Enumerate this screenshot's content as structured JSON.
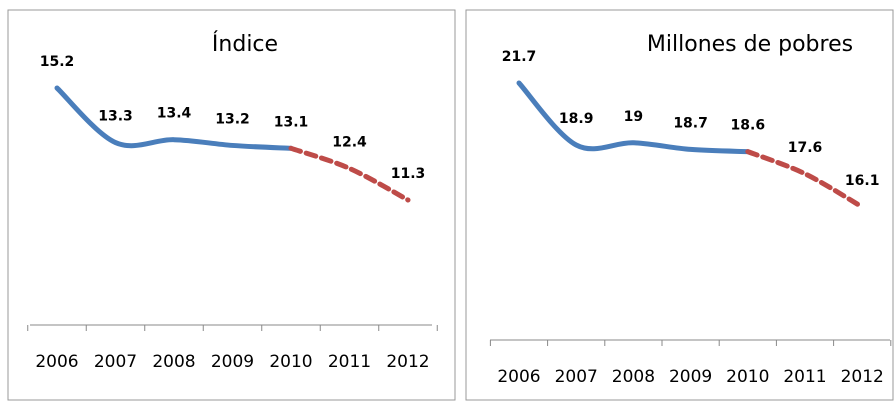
{
  "chart_data": [
    {
      "type": "line",
      "title": "Índice",
      "categories": [
        "2006",
        "2007",
        "2008",
        "2009",
        "2010",
        "2011",
        "2012"
      ],
      "series": [
        {
          "color": "#4a7ebb",
          "values": [
            15.2,
            13.3,
            13.4,
            13.2,
            13.1,
            null,
            null
          ]
        },
        {
          "color": "#be4b48",
          "dashed": true,
          "values": [
            null,
            null,
            null,
            null,
            13.1,
            12.4,
            11.3
          ]
        }
      ]
    },
    {
      "type": "line",
      "title": "Millones de pobres",
      "categories": [
        "2006",
        "2007",
        "2008",
        "2009",
        "2010",
        "2011",
        "2012"
      ],
      "series": [
        {
          "color": "#4a7ebb",
          "values": [
            21.7,
            18.9,
            19.0,
            18.7,
            18.6,
            null,
            null
          ]
        },
        {
          "color": "#be4b48",
          "dashed": true,
          "values": [
            null,
            null,
            null,
            null,
            18.6,
            17.6,
            16.1
          ]
        }
      ]
    }
  ]
}
